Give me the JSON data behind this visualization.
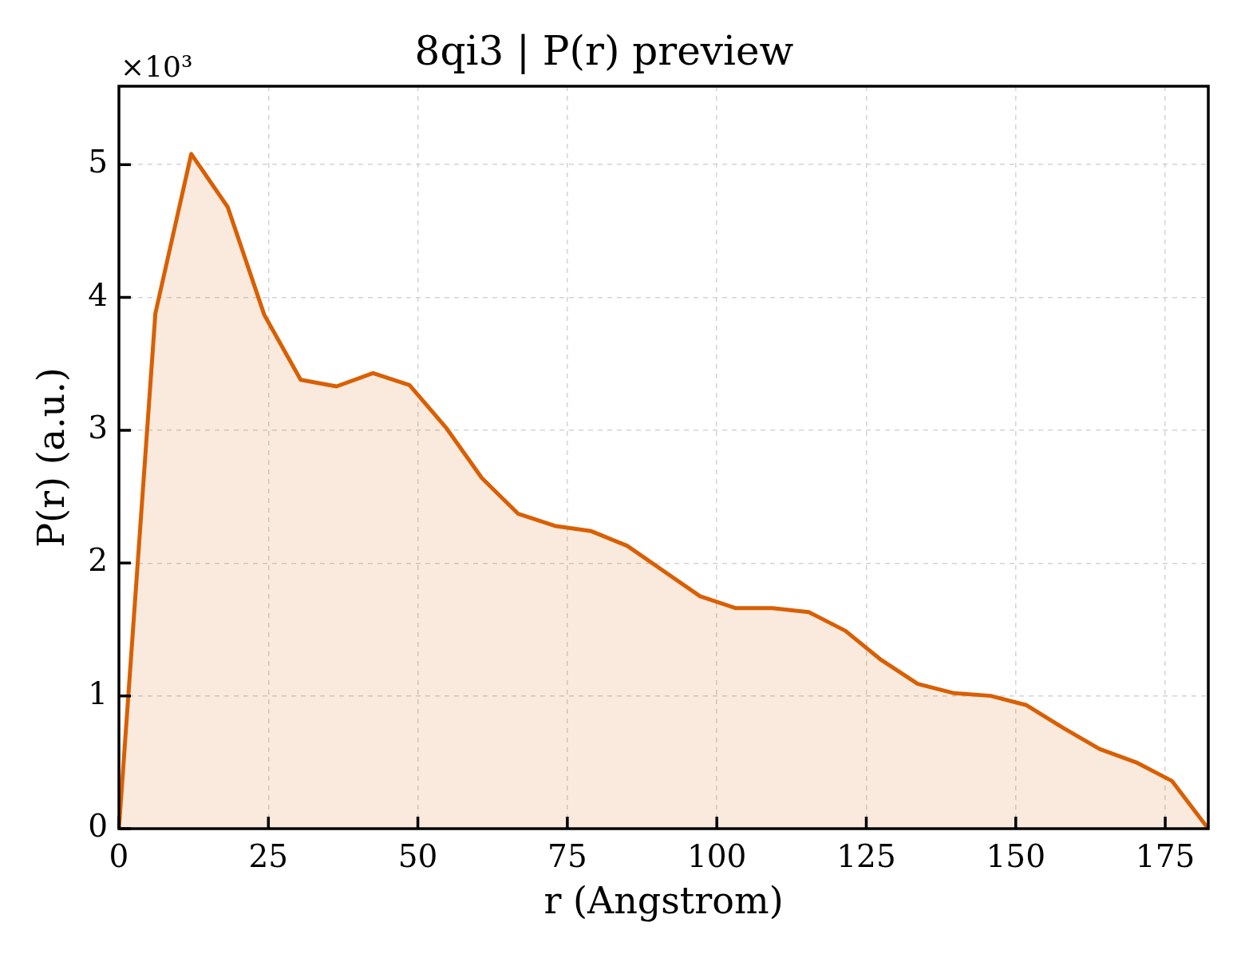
{
  "chart_data": {
    "type": "area",
    "title": "8qi3 | P(r) preview",
    "xlabel": "r (Angstrom)",
    "ylabel": "P(r) (a.u.)",
    "annotations": [
      "×10³"
    ],
    "x": [
      0,
      6.1,
      12.1,
      18.2,
      24.3,
      30.4,
      36.4,
      42.5,
      48.6,
      54.7,
      60.7,
      66.8,
      72.9,
      79.0,
      85.0,
      91.1,
      97.2,
      103.2,
      109.3,
      115.4,
      121.5,
      127.5,
      133.6,
      139.7,
      145.8,
      151.8,
      157.9,
      164.0,
      170.1,
      176.1,
      182.2
    ],
    "values": [
      0,
      3.88,
      5.08,
      4.68,
      3.87,
      3.38,
      3.33,
      3.43,
      3.34,
      3.02,
      2.64,
      2.37,
      2.28,
      2.24,
      2.13,
      1.94,
      1.75,
      1.66,
      1.66,
      1.63,
      1.49,
      1.27,
      1.09,
      1.02,
      1.0,
      0.93,
      0.76,
      0.6,
      0.5,
      0.36,
      0
    ],
    "color": "#d95f02",
    "xlim": [
      0,
      182.2
    ],
    "ylim": [
      0,
      5.59
    ],
    "xticks": [
      0,
      25,
      50,
      75,
      100,
      125,
      150,
      175
    ],
    "yticks": [
      0,
      1,
      2,
      3,
      4,
      5
    ],
    "grid": true,
    "marker": "none"
  }
}
